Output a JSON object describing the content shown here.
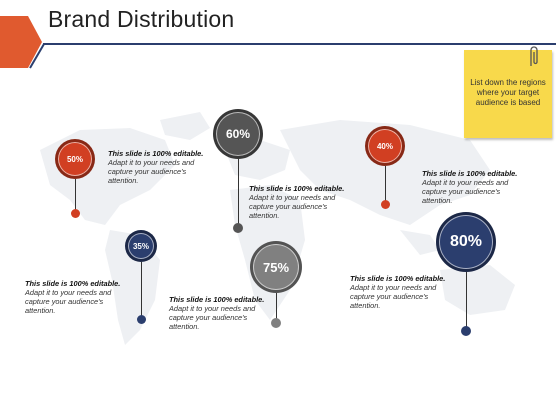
{
  "title": "Brand Distribution",
  "note": {
    "text": "List down the regions where your target audience is based"
  },
  "colors": {
    "red": "#d13f22",
    "navy": "#2b3e6e",
    "dark_gray": "#555555",
    "light_gray": "#808080",
    "note_yellow": "#f8d94b"
  },
  "pins": [
    {
      "label": "50%",
      "color": "red"
    },
    {
      "label": "60%",
      "color": "dark_gray"
    },
    {
      "label": "40%",
      "color": "red"
    },
    {
      "label": "35%",
      "color": "navy"
    },
    {
      "label": "75%",
      "color": "light_gray"
    },
    {
      "label": "80%",
      "color": "navy"
    }
  ],
  "descriptions": [
    {
      "heading": "This slide is 100% editable.",
      "body": "Adapt it to your needs and capture your audience's attention."
    },
    {
      "heading": "This slide is 100% editable.",
      "body": "Adapt it to your needs and capture your audience's attention."
    },
    {
      "heading": "This slide is 100% editable.",
      "body": "Adapt it to your needs and capture your audience's attention."
    },
    {
      "heading": "This slide is 100% editable.",
      "body": "Adapt it to your needs and capture your audience's attention."
    },
    {
      "heading": "This slide is 100% editable.",
      "body": "Adapt it to your needs and capture your audience's attention."
    },
    {
      "heading": "This slide is 100% editable.",
      "body": "Adapt it to your needs and capture your audience's attention."
    }
  ]
}
